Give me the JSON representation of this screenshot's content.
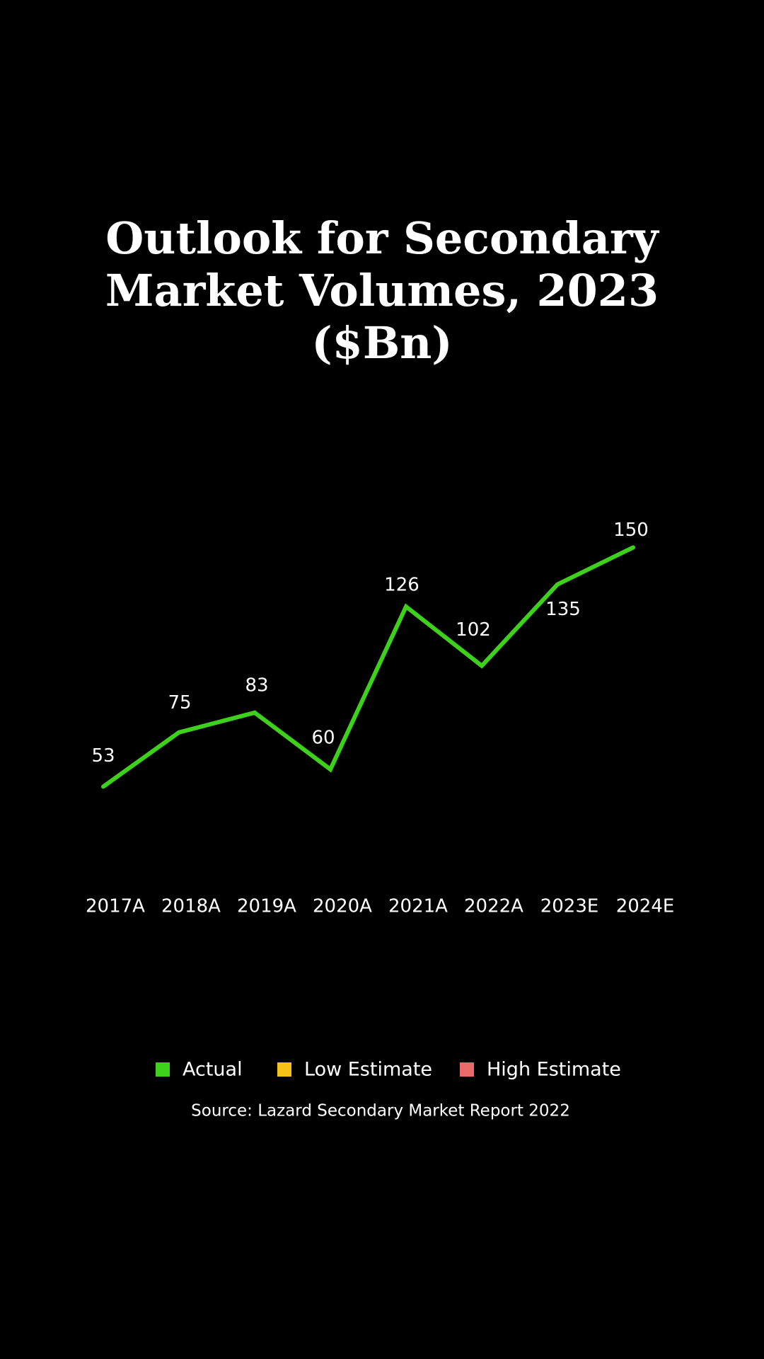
{
  "chart_data": {
    "type": "line",
    "title": "Outlook for Secondary Market Volumes, 2023 ($Bn)",
    "categories": [
      "2017A",
      "2018A",
      "2019A",
      "2020A",
      "2021A",
      "2022A",
      "2023E",
      "2024E"
    ],
    "series": [
      {
        "name": "Actual",
        "color": "#3dd11b",
        "values": [
          53,
          75,
          83,
          60,
          126,
          102,
          135,
          150
        ]
      },
      {
        "name": "Low Estimate",
        "color": "#f6c21a",
        "values": [
          null,
          null,
          null,
          null,
          null,
          null,
          null,
          null
        ]
      },
      {
        "name": "High Estimate",
        "color": "#e96a6a",
        "values": [
          null,
          null,
          null,
          null,
          null,
          null,
          null,
          null
        ]
      }
    ],
    "source": "Source: Lazard Secondary Market Report 2022"
  }
}
